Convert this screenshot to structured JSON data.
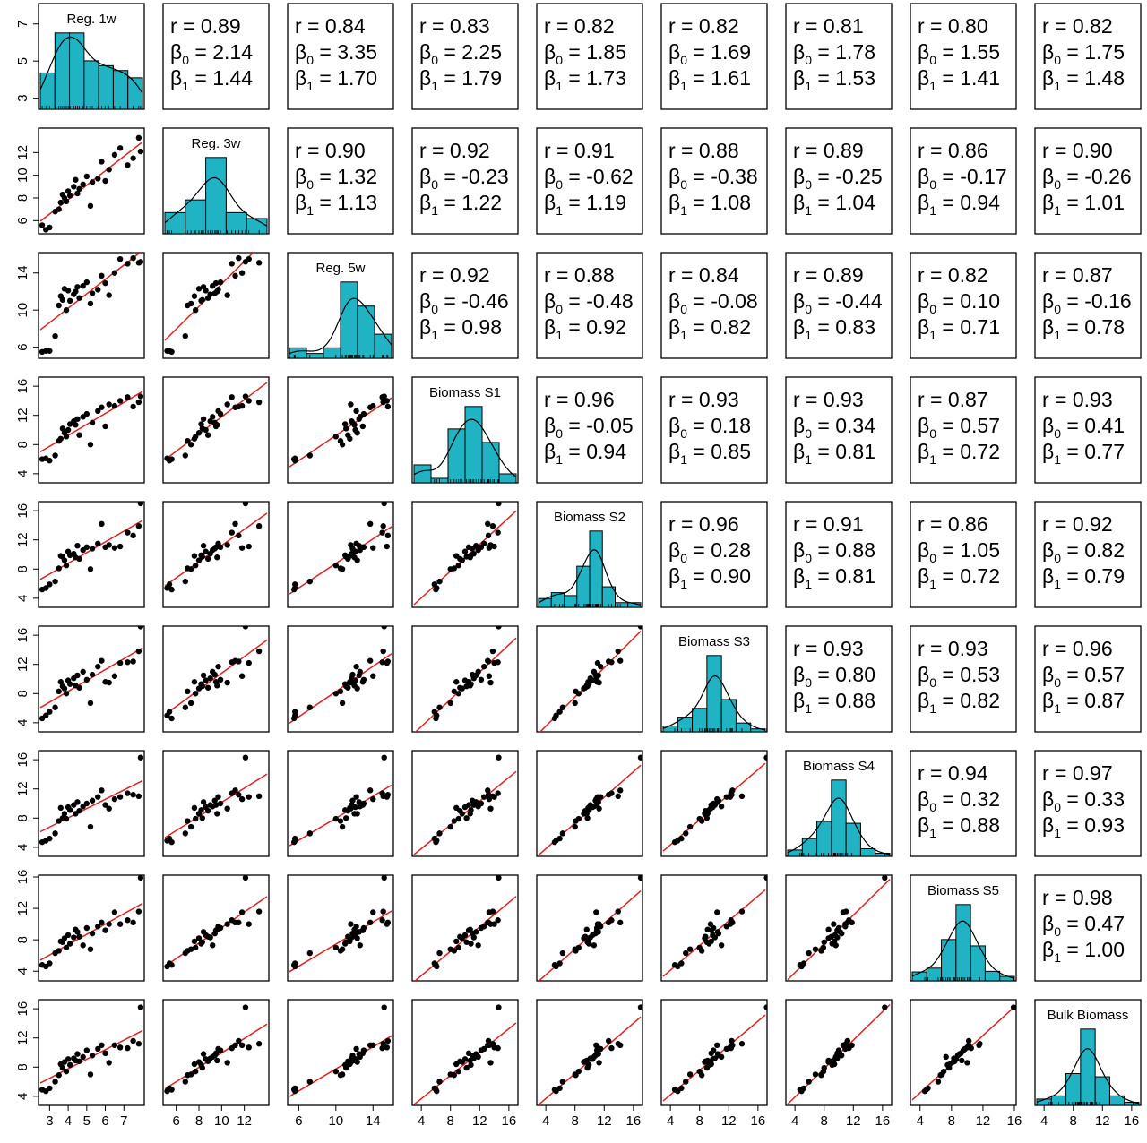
{
  "chart_data": {
    "type": "scatter",
    "title": "",
    "colors": {
      "hist_fill": "#1fb3c4",
      "line": "#e02020",
      "point": "#000000",
      "frame": "#000000"
    },
    "variables": [
      {
        "name": "Reg. 1w",
        "range": [
          2.5,
          8
        ],
        "ticks": [
          3,
          5,
          7
        ],
        "xtick_labels": [
          "3",
          "4",
          "5",
          "6",
          "7"
        ],
        "xticks": [
          3,
          4,
          5,
          6,
          7
        ],
        "hist": {
          "range": [
            2.5,
            8
          ],
          "counts": [
            3,
            6.3,
            6.3,
            4,
            3.6,
            3.2,
            2.6
          ]
        }
      },
      {
        "name": "Reg. 3w",
        "range": [
          5,
          14
        ],
        "ticks": [
          6,
          8,
          10,
          12
        ],
        "xtick_labels": [
          "6",
          "8",
          "10",
          "12"
        ],
        "xticks": [
          6,
          8,
          10,
          12
        ],
        "hist": {
          "range": [
            5,
            14
          ],
          "counts": [
            2.5,
            4,
            9,
            2.5,
            1.8
          ]
        }
      },
      {
        "name": "Reg. 5w",
        "range": [
          5,
          16
        ],
        "ticks": [
          6,
          10,
          14
        ],
        "xtick_labels": [
          "6",
          "10",
          "14"
        ],
        "xticks": [
          6,
          10,
          14
        ],
        "hist": {
          "range": [
            5,
            16
          ],
          "counts": [
            1.3,
            0.6,
            1.3,
            9.5,
            6.5,
            3
          ]
        }
      },
      {
        "name": "Biomass S1",
        "range": [
          3,
          17
        ],
        "ticks": [
          4,
          8,
          12,
          16
        ],
        "xtick_labels": [
          "4",
          "8",
          "12",
          "16"
        ],
        "xticks": [
          4,
          8,
          12,
          16
        ],
        "hist": {
          "range": [
            3,
            17
          ],
          "counts": [
            2,
            0.5,
            6,
            8.5,
            4.5,
            1
          ]
        }
      },
      {
        "name": "Biomass S2",
        "range": [
          3,
          17
        ],
        "ticks": [
          4,
          8,
          12,
          16
        ],
        "xtick_labels": [
          "4",
          "8",
          "12",
          "16"
        ],
        "xticks": [
          4,
          8,
          12,
          16
        ],
        "hist": {
          "range": [
            3,
            17
          ],
          "counts": [
            1.5,
            2.5,
            2,
            7,
            13,
            3.5,
            0.8,
            0.8
          ]
        }
      },
      {
        "name": "Biomass S3",
        "range": [
          3,
          17
        ],
        "ticks": [
          4,
          8,
          12,
          16
        ],
        "xtick_labels": [
          "4",
          "8",
          "12",
          "16"
        ],
        "xticks": [
          4,
          8,
          12,
          16
        ],
        "hist": {
          "range": [
            3,
            17
          ],
          "counts": [
            1,
            2.5,
            4,
            13,
            5.5,
            1.5,
            0.5
          ]
        }
      },
      {
        "name": "Biomass S4",
        "range": [
          3,
          17
        ],
        "ticks": [
          4,
          8,
          12,
          16
        ],
        "xtick_labels": [
          "4",
          "8",
          "12",
          "16"
        ],
        "xticks": [
          4,
          8,
          12,
          16
        ],
        "hist": {
          "range": [
            3,
            17
          ],
          "counts": [
            1,
            2.8,
            5.5,
            12,
            5.2,
            1.2,
            0.5
          ]
        }
      },
      {
        "name": "Biomass S5",
        "range": [
          3,
          16
        ],
        "ticks": [
          4,
          8,
          12,
          16
        ],
        "xtick_labels": [
          "4",
          "8",
          "12",
          "16"
        ],
        "xticks": [
          4,
          8,
          12,
          16
        ],
        "hist": {
          "range": [
            3,
            16
          ],
          "counts": [
            1.4,
            2,
            6.5,
            12,
            5.5,
            1.5,
            0.7
          ]
        }
      },
      {
        "name": "Bulk Biomass",
        "range": [
          3,
          17
        ],
        "ticks": [
          4,
          8,
          12,
          16
        ],
        "xtick_labels": [
          "4",
          "8",
          "12",
          "16"
        ],
        "xticks": [
          4,
          8,
          12,
          16
        ],
        "hist": {
          "range": [
            3,
            17
          ],
          "counts": [
            1,
            1.5,
            5,
            12,
            4.5,
            1.5,
            0.5
          ]
        }
      }
    ],
    "stats": [
      [
        "",
        "r = 0.89|2.14|1.44",
        "r = 0.84|3.35|1.70",
        "r = 0.83|2.25|1.79",
        "r = 0.82|1.85|1.73",
        "r = 0.82|1.69|1.61",
        "r = 0.81|1.78|1.53",
        "r = 0.80|1.55|1.41",
        "r = 0.82|1.75|1.48"
      ],
      [
        "",
        "",
        "r = 0.90|1.32|1.13",
        "r = 0.92|-0.23|1.22",
        "r = 0.91|-0.62|1.19",
        "r = 0.88|-0.38|1.08",
        "r = 0.89|-0.25|1.04",
        "r = 0.86|-0.17|0.94",
        "r = 0.90|-0.26|1.01"
      ],
      [
        "",
        "",
        "",
        "r = 0.92|-0.46|0.98",
        "r = 0.88|-0.48|0.92",
        "r = 0.84|-0.08|0.82",
        "r = 0.89|-0.44|0.83",
        "r = 0.82|0.10|0.71",
        "r = 0.87|-0.16|0.78"
      ],
      [
        "",
        "",
        "",
        "",
        "r = 0.96|-0.05|0.94",
        "r = 0.93|0.18|0.85",
        "r = 0.93|0.34|0.81",
        "r = 0.87|0.57|0.72",
        "r = 0.93|0.41|0.77"
      ],
      [
        "",
        "",
        "",
        "",
        "",
        "r = 0.96|0.28|0.90",
        "r = 0.91|0.88|0.81",
        "r = 0.86|1.05|0.72",
        "r = 0.92|0.82|0.79"
      ],
      [
        "",
        "",
        "",
        "",
        "",
        "",
        "r = 0.93|0.80|0.88",
        "r = 0.93|0.53|0.82",
        "r = 0.96|0.57|0.87"
      ],
      [
        "",
        "",
        "",
        "",
        "",
        "",
        "",
        "r = 0.94|0.32|0.88",
        "r = 0.97|0.33|0.93"
      ],
      [
        "",
        "",
        "",
        "",
        "",
        "",
        "",
        "",
        "r = 0.98|0.47|1.00"
      ]
    ],
    "stat_labels": {
      "beta": "β",
      "beta0_sub": "0",
      "beta1_sub": "1",
      "eq": " = "
    },
    "samples": [
      [
        2.6,
        5.6,
        5.5,
        6.0,
        5.2,
        4.6,
        4.7,
        4.8,
        4.9
      ],
      [
        2.8,
        5.2,
        5.6,
        6.1,
        5.4,
        5.0,
        4.9,
        4.6,
        4.7
      ],
      [
        3.0,
        5.4,
        5.6,
        5.8,
        5.9,
        5.5,
        5.2,
        5.0,
        5.1
      ],
      [
        3.3,
        6.8,
        7.2,
        6.5,
        6.3,
        6.1,
        5.9,
        6.3,
        6.0
      ],
      [
        3.5,
        7.0,
        10.5,
        8.5,
        8.1,
        8.3,
        7.6,
        6.6,
        6.9
      ],
      [
        3.6,
        7.6,
        11.5,
        8.8,
        9.8,
        9.6,
        9.4,
        7.8,
        8.4
      ],
      [
        3.7,
        8.3,
        11.1,
        10.2,
        9.7,
        9.0,
        8.0,
        7.7,
        7.9
      ],
      [
        3.8,
        8.0,
        12.3,
        9.6,
        9.2,
        8.7,
        8.6,
        8.2,
        8.7
      ],
      [
        3.9,
        7.7,
        10.0,
        9.1,
        8.5,
        8.0,
        7.9,
        7.0,
        7.4
      ],
      [
        4.0,
        8.6,
        12.1,
        10.0,
        10.4,
        9.8,
        9.5,
        8.6,
        9.1
      ],
      [
        4.1,
        8.2,
        11.0,
        10.8,
        9.9,
        9.3,
        9.1,
        7.5,
        8.3
      ],
      [
        4.3,
        9.0,
        11.7,
        11.2,
        10.1,
        10.1,
        9.8,
        8.3,
        9.2
      ],
      [
        4.4,
        9.6,
        12.0,
        10.7,
        9.6,
        9.1,
        8.6,
        9.3,
        8.9
      ],
      [
        4.5,
        8.4,
        12.5,
        11.5,
        11.2,
        10.5,
        10.2,
        9.0,
        9.8
      ],
      [
        4.6,
        8.8,
        11.3,
        9.3,
        9.4,
        8.8,
        9.0,
        8.4,
        8.8
      ],
      [
        4.8,
        9.2,
        12.6,
        11.8,
        10.6,
        11.0,
        9.6,
        7.3,
        9.4
      ],
      [
        5.0,
        9.9,
        13.0,
        12.2,
        11.0,
        9.9,
        10.0,
        9.5,
        10.3
      ],
      [
        5.2,
        7.3,
        10.7,
        8.0,
        8.0,
        6.7,
        6.8,
        6.8,
        7.0
      ],
      [
        5.3,
        9.4,
        11.8,
        11.0,
        10.8,
        10.6,
        10.4,
        8.8,
        9.6
      ],
      [
        5.6,
        9.7,
        12.2,
        12.6,
        11.5,
        11.7,
        10.9,
        9.7,
        10.5
      ],
      [
        5.8,
        11.2,
        13.7,
        13.1,
        14.2,
        12.5,
        11.8,
        10.2,
        11.0
      ],
      [
        6.0,
        9.5,
        12.9,
        10.5,
        11.0,
        9.6,
        9.8,
        9.2,
        9.9
      ],
      [
        6.2,
        10.5,
        11.6,
        13.5,
        11.3,
        9.5,
        9.3,
        10.0,
        8.6
      ],
      [
        6.5,
        11.8,
        14.0,
        13.3,
        10.9,
        10.4,
        10.6,
        11.5,
        11.0
      ],
      [
        6.8,
        12.4,
        15.5,
        14.0,
        11.1,
        12.2,
        10.9,
        10.0,
        10.7
      ],
      [
        7.2,
        10.9,
        15.0,
        14.5,
        13.0,
        12.3,
        11.4,
        10.5,
        10.6
      ],
      [
        7.5,
        11.5,
        15.6,
        13.2,
        12.6,
        12.4,
        11.2,
        10.2,
        11.6
      ],
      [
        7.8,
        13.3,
        15.1,
        13.8,
        13.9,
        13.8,
        11.0,
        11.6,
        11.2
      ],
      [
        7.9,
        12.1,
        15.2,
        14.6,
        17.0,
        17.2,
        16.3,
        15.9,
        16.2
      ]
    ]
  }
}
